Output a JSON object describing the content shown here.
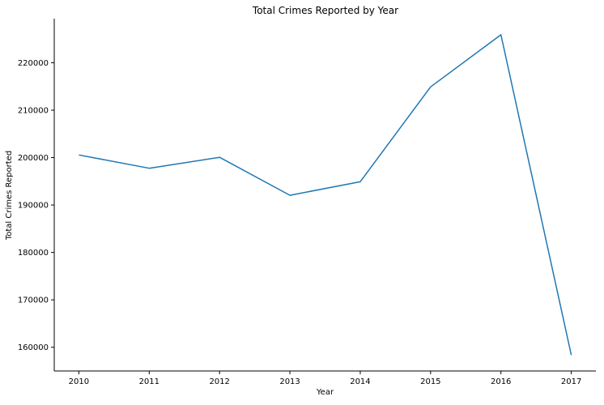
{
  "chart_data": {
    "type": "line",
    "title": "Total Crimes Reported by Year",
    "xlabel": "Year",
    "ylabel": "Total Crimes Reported",
    "x": [
      2010,
      2011,
      2012,
      2013,
      2014,
      2015,
      2016,
      2017
    ],
    "series": [
      {
        "values": [
          200550,
          197750,
          200050,
          192050,
          194900,
          214900,
          225900,
          158350
        ]
      }
    ],
    "xlim": [
      2009.65,
      2017.35
    ],
    "ylim": [
      155000,
      229300
    ],
    "yticks": [
      160000,
      170000,
      180000,
      190000,
      200000,
      210000,
      220000
    ],
    "xticks": [
      2010,
      2011,
      2012,
      2013,
      2014,
      2015,
      2016,
      2017
    ],
    "grid": false,
    "line_color": "#1f77b4",
    "axis_color": "#000000"
  }
}
